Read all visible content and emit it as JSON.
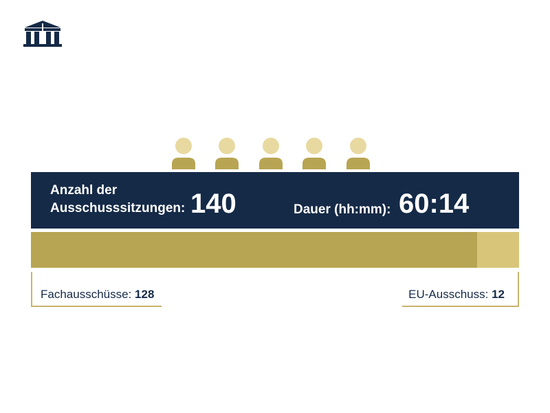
{
  "chart_data": {
    "type": "stacked-bar",
    "total_label": "Anzahl der Ausschusssitzungen:",
    "total": 140,
    "duration_label": "Dauer (hh:mm):",
    "duration": "60:14",
    "series": [
      {
        "name": "Fachausschüsse:",
        "color": "#b8a553",
        "values": [
          128
        ]
      },
      {
        "name": "EU-Ausschuss:",
        "color": "#d9c57a",
        "values": [
          12
        ]
      }
    ]
  }
}
